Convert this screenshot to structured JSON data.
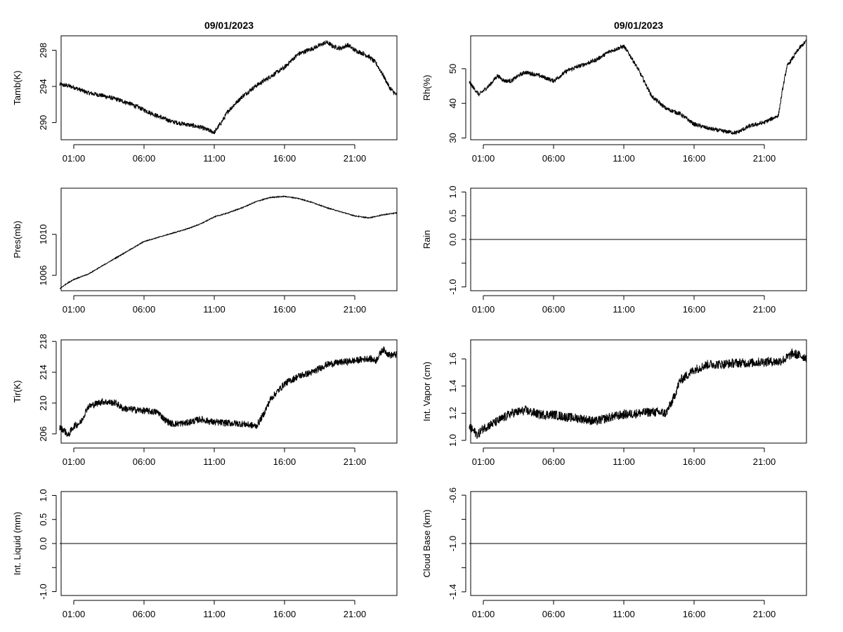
{
  "chart_data": [
    {
      "id": "tamb",
      "type": "line",
      "title": "09/01/2023",
      "ylabel": "Tamb(K)",
      "x_ticks": [
        "01:00",
        "06:00",
        "11:00",
        "16:00",
        "21:00"
      ],
      "xlim": [
        0.1,
        24.0
      ],
      "ylim": [
        288.1,
        299.6
      ],
      "y_ticks": [
        290,
        294,
        298
      ],
      "series": [
        {
          "x": [
            0.0,
            0.5,
            1.0,
            1.5,
            2.0,
            3.0,
            4.0,
            5.0,
            6.0,
            7.0,
            8.0,
            9.0,
            10.0,
            10.5,
            11.0,
            11.5,
            12.0,
            13.0,
            14.0,
            15.0,
            16.0,
            16.5,
            17.0,
            18.0,
            19.0,
            19.5,
            20.0,
            20.5,
            21.0,
            21.5,
            22.0,
            22.5,
            23.0,
            23.5,
            24.0
          ],
          "y": [
            294.2,
            294.1,
            293.9,
            293.6,
            293.3,
            293.0,
            292.6,
            292.1,
            291.4,
            290.7,
            290.1,
            289.8,
            289.5,
            289.2,
            288.9,
            290.0,
            291.3,
            292.9,
            294.1,
            295.1,
            296.1,
            296.9,
            297.6,
            298.2,
            298.9,
            298.4,
            298.2,
            298.6,
            298.0,
            297.7,
            297.3,
            296.6,
            295.3,
            293.8,
            293.0
          ],
          "noise": 0.25
        }
      ]
    },
    {
      "id": "rh",
      "type": "line",
      "title": "09/01/2023",
      "ylabel": "Rh(%)",
      "x_ticks": [
        "01:00",
        "06:00",
        "11:00",
        "16:00",
        "21:00"
      ],
      "xlim": [
        0.1,
        24.0
      ],
      "ylim": [
        29.5,
        59.5
      ],
      "y_ticks": [
        30,
        40,
        50
      ],
      "series": [
        {
          "x": [
            0.0,
            0.3,
            0.7,
            1.5,
            2.0,
            2.5,
            3.0,
            3.5,
            4.0,
            5.0,
            6.0,
            7.0,
            8.0,
            9.0,
            10.0,
            11.0,
            11.5,
            12.0,
            12.5,
            13.0,
            14.0,
            15.0,
            16.0,
            17.0,
            18.0,
            19.0,
            20.0,
            21.0,
            21.5,
            22.0,
            22.3,
            22.6,
            23.0,
            23.5,
            24.0
          ],
          "y": [
            46.0,
            44.5,
            42.5,
            45.5,
            48.0,
            46.5,
            46.5,
            48.0,
            49.0,
            48.0,
            46.5,
            49.5,
            51.0,
            52.5,
            55.0,
            56.5,
            53.5,
            50.0,
            46.0,
            42.0,
            38.5,
            37.0,
            34.0,
            32.8,
            32.0,
            31.5,
            33.5,
            34.5,
            35.5,
            36.5,
            44.0,
            50.5,
            53.0,
            56.0,
            58.0
          ],
          "noise": 0.6
        }
      ]
    },
    {
      "id": "pres",
      "type": "line",
      "title": "",
      "ylabel": "Pres(mb)",
      "x_ticks": [
        "01:00",
        "06:00",
        "11:00",
        "16:00",
        "21:00"
      ],
      "xlim": [
        0.1,
        24.0
      ],
      "ylim": [
        1004.5,
        1014.5
      ],
      "y_ticks": [
        1006,
        1010
      ],
      "series": [
        {
          "x": [
            0.0,
            0.5,
            1.0,
            2.0,
            3.0,
            4.0,
            5.0,
            6.0,
            7.0,
            8.0,
            9.0,
            10.0,
            11.0,
            12.0,
            13.0,
            14.0,
            15.0,
            16.0,
            17.0,
            18.0,
            19.0,
            20.0,
            21.0,
            22.0,
            23.0,
            24.0
          ],
          "y": [
            1004.7,
            1005.2,
            1005.6,
            1006.1,
            1006.9,
            1007.7,
            1008.5,
            1009.3,
            1009.7,
            1010.1,
            1010.5,
            1011.0,
            1011.7,
            1012.1,
            1012.6,
            1013.2,
            1013.6,
            1013.7,
            1013.5,
            1013.1,
            1012.6,
            1012.2,
            1011.8,
            1011.6,
            1011.9,
            1012.1
          ],
          "noise": 0.04
        }
      ]
    },
    {
      "id": "rain",
      "type": "line",
      "title": "",
      "ylabel": "Rain",
      "x_ticks": [
        "01:00",
        "06:00",
        "11:00",
        "16:00",
        "21:00"
      ],
      "xlim": [
        0.1,
        24.0
      ],
      "ylim": [
        -1.08,
        1.08
      ],
      "y_ticks": [
        -1.0,
        -0.5,
        0.0,
        0.5,
        1.0
      ],
      "y_tick_labels": [
        "-1.0",
        "",
        "0.0",
        "0.5",
        "1.0"
      ],
      "series": [
        {
          "x": [
            0.0,
            24.0
          ],
          "y": [
            0.0,
            0.0
          ],
          "noise": 0
        }
      ]
    },
    {
      "id": "tir",
      "type": "line",
      "title": "",
      "ylabel": "Tir(K)",
      "x_ticks": [
        "01:00",
        "06:00",
        "11:00",
        "16:00",
        "21:00"
      ],
      "xlim": [
        0.1,
        24.0
      ],
      "ylim": [
        204.8,
        218.2
      ],
      "y_ticks": [
        206,
        210,
        214,
        218
      ],
      "series": [
        {
          "x": [
            0.0,
            0.3,
            0.6,
            1.0,
            1.5,
            2.0,
            3.0,
            4.0,
            4.5,
            5.0,
            6.0,
            7.0,
            7.5,
            8.0,
            9.0,
            10.0,
            11.0,
            12.0,
            13.0,
            14.0,
            14.5,
            15.0,
            15.5,
            16.0,
            17.0,
            18.0,
            19.0,
            20.0,
            21.0,
            22.0,
            22.5,
            23.0,
            23.5,
            24.0
          ],
          "y": [
            206.8,
            206.5,
            205.8,
            207.0,
            207.5,
            209.5,
            210.2,
            210.0,
            209.3,
            209.2,
            209.0,
            208.8,
            207.8,
            207.3,
            207.4,
            207.9,
            207.5,
            207.4,
            207.3,
            207.0,
            208.5,
            210.5,
            211.5,
            212.5,
            213.5,
            214.0,
            215.0,
            215.3,
            215.5,
            215.8,
            215.5,
            217.0,
            216.2,
            216.3
          ],
          "noise": 0.45
        }
      ]
    },
    {
      "id": "vapor",
      "type": "line",
      "title": "",
      "ylabel": "Int. Vapor (cm)",
      "x_ticks": [
        "01:00",
        "06:00",
        "11:00",
        "16:00",
        "21:00"
      ],
      "xlim": [
        0.1,
        24.0
      ],
      "ylim": [
        0.98,
        1.74
      ],
      "y_ticks": [
        1.0,
        1.2,
        1.4,
        1.6
      ],
      "series": [
        {
          "x": [
            0.0,
            0.3,
            0.6,
            1.0,
            2.0,
            3.0,
            4.0,
            5.0,
            6.0,
            7.0,
            8.0,
            9.0,
            10.0,
            11.0,
            12.0,
            13.0,
            14.0,
            14.5,
            15.0,
            15.5,
            16.0,
            17.0,
            18.0,
            19.0,
            20.0,
            21.0,
            22.0,
            22.5,
            23.0,
            24.0
          ],
          "y": [
            1.1,
            1.07,
            1.04,
            1.09,
            1.14,
            1.2,
            1.22,
            1.19,
            1.19,
            1.17,
            1.16,
            1.14,
            1.17,
            1.19,
            1.2,
            1.21,
            1.2,
            1.3,
            1.44,
            1.48,
            1.52,
            1.56,
            1.56,
            1.57,
            1.57,
            1.58,
            1.58,
            1.6,
            1.64,
            1.61
          ],
          "noise": 0.035
        }
      ]
    },
    {
      "id": "liquid",
      "type": "line",
      "title": "",
      "ylabel": "Int. Liquid (mm)",
      "x_ticks": [
        "01:00",
        "06:00",
        "11:00",
        "16:00",
        "21:00"
      ],
      "xlim": [
        0.1,
        24.0
      ],
      "ylim": [
        -1.08,
        1.08
      ],
      "y_ticks": [
        -1.0,
        -0.5,
        0.0,
        0.5,
        1.0
      ],
      "y_tick_labels": [
        "-1.0",
        "",
        "0.0",
        "0.5",
        "1.0"
      ],
      "series": [
        {
          "x": [
            0.0,
            24.0
          ],
          "y": [
            0.0,
            0.0
          ],
          "noise": 0
        }
      ]
    },
    {
      "id": "cloud",
      "type": "line",
      "title": "",
      "ylabel": "Cloud Base (km)",
      "x_ticks": [
        "01:00",
        "06:00",
        "11:00",
        "16:00",
        "21:00"
      ],
      "xlim": [
        0.1,
        24.0
      ],
      "ylim": [
        -1.43,
        -0.57
      ],
      "y_ticks": [
        -1.4,
        -1.2,
        -1.0,
        -0.8,
        -0.6
      ],
      "y_tick_labels": [
        "-1.4",
        "",
        "-1.0",
        "",
        "-0.6"
      ],
      "series": [
        {
          "x": [
            0.0,
            24.0
          ],
          "y": [
            -1.0,
            -1.0
          ],
          "noise": 0
        }
      ]
    }
  ]
}
